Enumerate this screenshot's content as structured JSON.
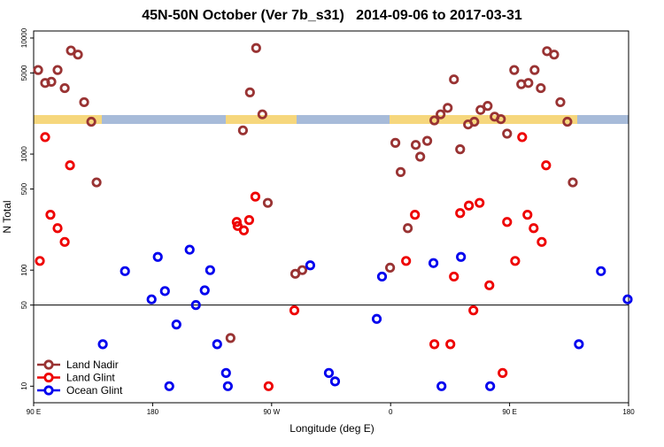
{
  "chart_data": {
    "type": "scatter",
    "title": "45N-50N October (Ver 7b_s31)   2014-09-06 to 2017-03-31",
    "x_label": "Longitude (deg E)",
    "y_label": "N Total",
    "xlim": [
      90,
      540
    ],
    "xticks": [
      {
        "value": 90,
        "label": "90 E"
      },
      {
        "value": 180,
        "label": "180"
      },
      {
        "value": 270,
        "label": "90 W"
      },
      {
        "value": 360,
        "label": "0"
      },
      {
        "value": 450,
        "label": "90 E"
      },
      {
        "value": 540,
        "label": "180"
      }
    ],
    "ylim": [
      7.2,
      11500
    ],
    "yticks": [
      10,
      50,
      100,
      500,
      1000,
      5000,
      10000
    ],
    "y_log": true,
    "hline": 50,
    "legend_position": "lower left",
    "series": [
      {
        "name": "Land Nadir",
        "color": "#993333",
        "x": [
          93.4,
          98.7,
          103.4,
          108.1,
          113.5,
          118.2,
          123.5,
          128.2,
          133.6,
          137.6,
          238.9,
          248.3,
          253.6,
          258.3,
          263.0,
          267.1,
          287.9,
          293.2,
          359.6,
          363.6,
          367.6,
          373.0,
          379.0,
          382.4,
          387.7,
          393.1,
          397.8,
          403.2,
          407.9,
          412.6,
          418.6,
          423.3,
          428.0,
          433.4,
          438.7,
          443.4,
          448.1,
          453.5,
          458.8,
          464.2,
          468.9,
          473.6,
          478.3,
          483.7,
          488.4,
          493.7,
          497.8
        ],
        "values": [
          5300,
          4100,
          4200,
          5300,
          3700,
          7800,
          7200,
          2800,
          1900,
          570,
          26,
          1600,
          3400,
          8200,
          2200,
          380,
          93,
          100,
          105,
          1250,
          700,
          230,
          1200,
          950,
          1300,
          1950,
          2200,
          2500,
          4400,
          1100,
          1800,
          1900,
          2400,
          2600,
          2100,
          2000,
          1500,
          5300,
          4000,
          4100,
          5300,
          3700,
          7700,
          7200,
          2800,
          1900,
          570
        ]
      },
      {
        "name": "Land Glint",
        "color": "#ee0000",
        "x": [
          94.7,
          98.7,
          102.7,
          108.1,
          113.5,
          117.5,
          243.6,
          244.3,
          249.0,
          253.0,
          257.7,
          267.7,
          287.2,
          371.7,
          378.4,
          393.1,
          405.2,
          407.9,
          412.6,
          419.2,
          422.6,
          427.3,
          434.7,
          444.7,
          448.1,
          454.2,
          459.5,
          463.5,
          468.2,
          474.3,
          477.6
        ],
        "values": [
          120,
          1400,
          300,
          230,
          175,
          800,
          260,
          240,
          220,
          270,
          430,
          10,
          45,
          120,
          300,
          23,
          23,
          88,
          310,
          360,
          45,
          380,
          74,
          13,
          260,
          120,
          1400,
          300,
          230,
          175,
          800
        ]
      },
      {
        "name": "Ocean Glint",
        "color": "#0000ee",
        "x": [
          142.3,
          159.1,
          179.2,
          183.9,
          189.3,
          192.6,
          198.0,
          208.0,
          212.7,
          219.4,
          223.5,
          228.8,
          235.5,
          236.9,
          299.2,
          313.3,
          318.0,
          349.5,
          353.5,
          392.4,
          398.5,
          413.2,
          435.3,
          502.4,
          519.1,
          539.3
        ],
        "values": [
          23,
          98,
          56,
          130,
          66,
          10,
          34,
          150,
          50,
          67,
          100,
          23,
          13,
          10,
          110,
          13,
          11,
          38,
          88,
          115,
          10,
          130,
          10,
          23,
          98,
          56
        ]
      }
    ]
  }
}
